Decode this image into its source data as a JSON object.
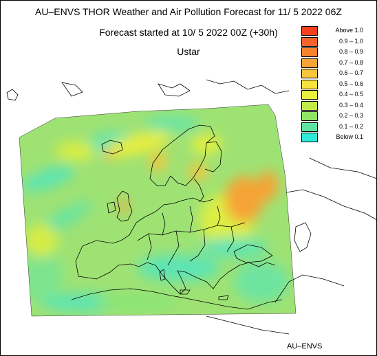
{
  "header": {
    "title": "AU–ENVS THOR Weather and Air Pollution Forecast for 11/ 5 2022  06Z",
    "subtitle": "Forecast started at 10/ 5 2022  00Z (+30h)",
    "variable": "Ustar"
  },
  "legend": {
    "items": [
      {
        "label": "Above   1.0",
        "color": "#f5401e"
      },
      {
        "label": "0.9 – 1.0",
        "color": "#f5642a"
      },
      {
        "label": "0.8 – 0.9",
        "color": "#f5842d"
      },
      {
        "label": "0.7 – 0.8",
        "color": "#f7a335"
      },
      {
        "label": "0.6 – 0.7",
        "color": "#f8c63a"
      },
      {
        "label": "0.5 – 0.6",
        "color": "#f8e33c"
      },
      {
        "label": "0.4 – 0.5",
        "color": "#e7f23e"
      },
      {
        "label": "0.3 – 0.4",
        "color": "#c0ec4a"
      },
      {
        "label": "0.2 – 0.3",
        "color": "#90e466"
      },
      {
        "label": "0.1 – 0.2",
        "color": "#5ee4a2"
      },
      {
        "label": "Below   0.1",
        "color": "#2ee8d8"
      }
    ]
  },
  "credit": "AU–ENVS",
  "colors": {
    "background": "#ffffff",
    "border": "#000000",
    "coastline": "#000000"
  }
}
